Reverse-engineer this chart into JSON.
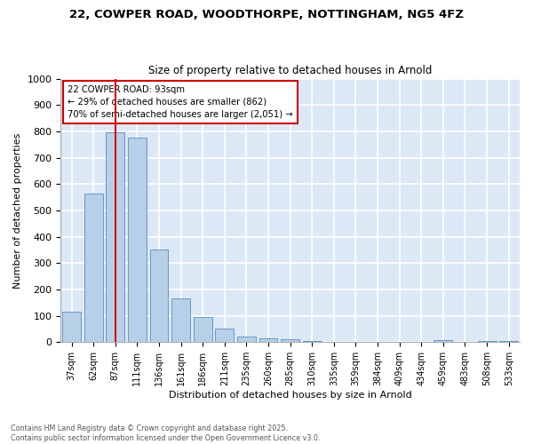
{
  "title1": "22, COWPER ROAD, WOODTHORPE, NOTTINGHAM, NG5 4FZ",
  "title2": "Size of property relative to detached houses in Arnold",
  "xlabel": "Distribution of detached houses by size in Arnold",
  "ylabel": "Number of detached properties",
  "bar_labels": [
    "37sqm",
    "62sqm",
    "87sqm",
    "111sqm",
    "136sqm",
    "161sqm",
    "186sqm",
    "211sqm",
    "235sqm",
    "260sqm",
    "285sqm",
    "310sqm",
    "335sqm",
    "359sqm",
    "384sqm",
    "409sqm",
    "434sqm",
    "459sqm",
    "483sqm",
    "508sqm",
    "533sqm"
  ],
  "bar_values": [
    115,
    565,
    795,
    775,
    350,
    165,
    97,
    52,
    20,
    14,
    10,
    4,
    2,
    1,
    1,
    0,
    0,
    8,
    0,
    3,
    3
  ],
  "bar_color": "#b8cfe8",
  "bar_edge_color": "#6698c8",
  "vline_x": 2,
  "vline_color": "#cc0000",
  "annotation_text": "22 COWPER ROAD: 93sqm\n← 29% of detached houses are smaller (862)\n70% of semi-detached houses are larger (2,051) →",
  "annotation_box_color": "#cc0000",
  "ylim": [
    0,
    1000
  ],
  "yticks": [
    0,
    100,
    200,
    300,
    400,
    500,
    600,
    700,
    800,
    900,
    1000
  ],
  "bg_color": "#dce8f5",
  "grid_color": "#ffffff",
  "fig_bg_color": "#ffffff",
  "footer_text": "Contains HM Land Registry data © Crown copyright and database right 2025.\nContains public sector information licensed under the Open Government Licence v3.0."
}
